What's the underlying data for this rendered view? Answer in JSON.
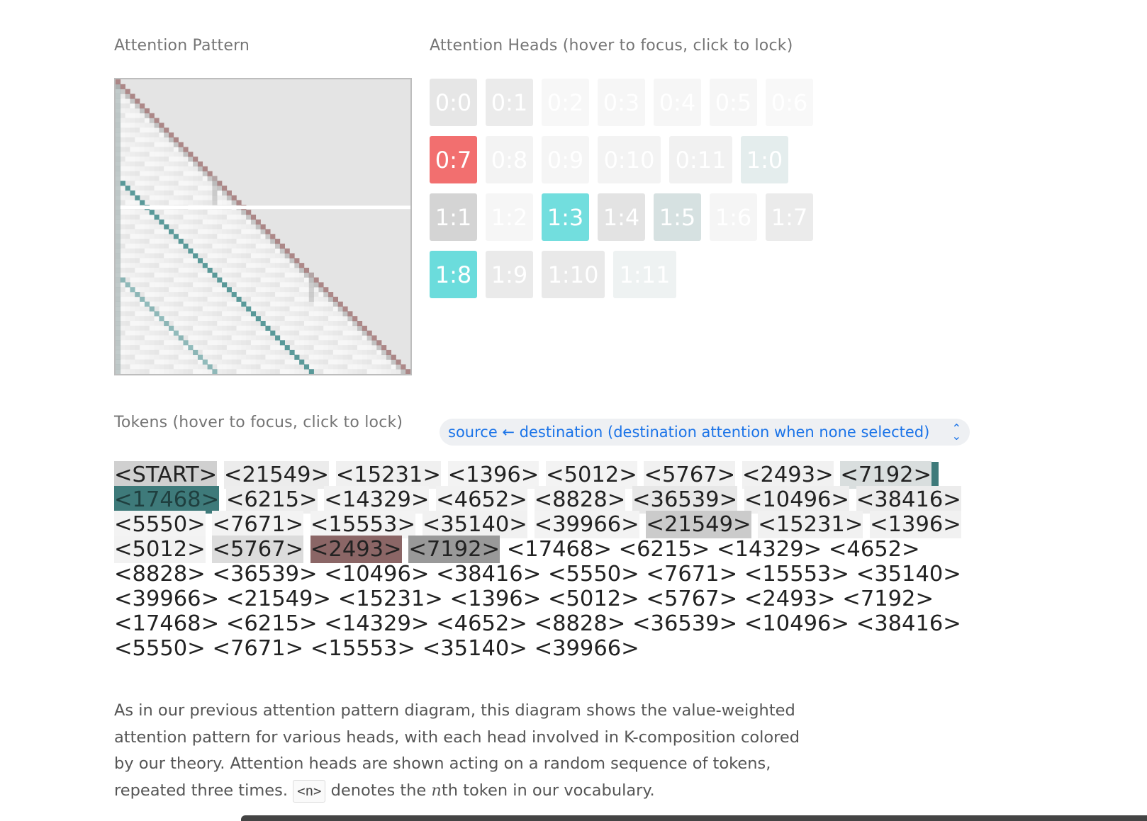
{
  "labels": {
    "pattern": "Attention Pattern",
    "heads": "Attention Heads (hover to focus, click to lock)",
    "tokens": "Tokens (hover to focus, click to lock)"
  },
  "heads": {
    "rows": [
      [
        {
          "label": "0:0",
          "color": "#e6e6e6"
        },
        {
          "label": "0:1",
          "color": "#ebebeb"
        },
        {
          "label": "0:2",
          "color": "#f7f7f7"
        },
        {
          "label": "0:3",
          "color": "#f6f6f6"
        },
        {
          "label": "0:4",
          "color": "#f6f6f6"
        },
        {
          "label": "0:5",
          "color": "#f6f6f6"
        },
        {
          "label": "0:6",
          "color": "#f8f8f8"
        }
      ],
      [
        {
          "label": "0:7",
          "color": "#f26f6f"
        },
        {
          "label": "0:8",
          "color": "#f3f3f3"
        },
        {
          "label": "0:9",
          "color": "#f5f5f5"
        },
        {
          "label": "0:10",
          "color": "#f3f3f3"
        },
        {
          "label": "0:11",
          "color": "#f1f1f1"
        },
        {
          "label": "1:0",
          "color": "#e4eded"
        }
      ],
      [
        {
          "label": "1:1",
          "color": "#d4d4d4"
        },
        {
          "label": "1:2",
          "color": "#f6f6f6"
        },
        {
          "label": "1:3",
          "color": "#72dede"
        },
        {
          "label": "1:4",
          "color": "#e3e3e3"
        },
        {
          "label": "1:5",
          "color": "#d6e1e1"
        },
        {
          "label": "1:6",
          "color": "#f5f5f5"
        },
        {
          "label": "1:7",
          "color": "#ebebeb"
        }
      ],
      [
        {
          "label": "1:8",
          "color": "#6bdcdc"
        },
        {
          "label": "1:9",
          "color": "#eaeaea"
        },
        {
          "label": "1:10",
          "color": "#e9e9e9"
        },
        {
          "label": "1:11",
          "color": "#eef2f2"
        }
      ]
    ]
  },
  "selector": {
    "value": "source ← destination (destination attention when none selected)"
  },
  "tokens": [
    {
      "text": "<START>",
      "bg": "#d0d0d0"
    },
    {
      "text": "<21549>",
      "bg": "#ececec"
    },
    {
      "text": "<15231>",
      "bg": "#f0f0f0"
    },
    {
      "text": "<1396>",
      "bg": "#f3f3f3"
    },
    {
      "text": "<5012>",
      "bg": "#f3f3f3"
    },
    {
      "text": "<5767>",
      "bg": "#f1f1f1"
    },
    {
      "text": "<2493>",
      "bg": "#f1f1f1"
    },
    {
      "text": "<7192>",
      "bg": "#d9dede"
    },
    {
      "text": "<17468>",
      "bg": "#3e7a7a",
      "cursor": true
    },
    {
      "text": "<6215>",
      "bg": "#ededed"
    },
    {
      "text": "<14329>",
      "bg": "#f2f2f2"
    },
    {
      "text": "<4652>",
      "bg": "#f2f2f2"
    },
    {
      "text": "<8828>",
      "bg": "#f2f2f2"
    },
    {
      "text": "<36539>",
      "bg": "#e7e7e7"
    },
    {
      "text": "<10496>",
      "bg": "#efefef"
    },
    {
      "text": "<38416>",
      "bg": "#ececec"
    },
    {
      "text": "<5550>",
      "bg": "#f3f3f3"
    },
    {
      "text": "<7671>",
      "bg": "#f3f3f3"
    },
    {
      "text": "<15553>",
      "bg": "#f3f3f3"
    },
    {
      "text": "<35140>",
      "bg": "#f1f1f1"
    },
    {
      "text": "<39966>",
      "bg": "#f3f3f3"
    },
    {
      "text": "<21549>",
      "bg": "#cbcbcb"
    },
    {
      "text": "<15231>",
      "bg": "#f1f1f1"
    },
    {
      "text": "<1396>",
      "bg": "#f1f1f1"
    },
    {
      "text": "<5012>",
      "bg": "#f2f2f2"
    },
    {
      "text": "<5767>",
      "bg": "#dcdcdc"
    },
    {
      "text": "<2493>",
      "bg": "#8b6666"
    },
    {
      "text": "<7192>",
      "bg": "#999999"
    },
    {
      "text": "<17468>",
      "bg": ""
    },
    {
      "text": "<6215>",
      "bg": ""
    },
    {
      "text": "<14329>",
      "bg": ""
    },
    {
      "text": "<4652>",
      "bg": ""
    },
    {
      "text": "<8828>",
      "bg": ""
    },
    {
      "text": "<36539>",
      "bg": ""
    },
    {
      "text": "<10496>",
      "bg": ""
    },
    {
      "text": "<38416>",
      "bg": ""
    },
    {
      "text": "<5550>",
      "bg": ""
    },
    {
      "text": "<7671>",
      "bg": ""
    },
    {
      "text": "<15553>",
      "bg": ""
    },
    {
      "text": "<35140>",
      "bg": ""
    },
    {
      "text": "<39966>",
      "bg": ""
    },
    {
      "text": "<21549>",
      "bg": ""
    },
    {
      "text": "<15231>",
      "bg": ""
    },
    {
      "text": "<1396>",
      "bg": ""
    },
    {
      "text": "<5012>",
      "bg": ""
    },
    {
      "text": "<5767>",
      "bg": ""
    },
    {
      "text": "<2493>",
      "bg": ""
    },
    {
      "text": "<7192>",
      "bg": ""
    },
    {
      "text": "<17468>",
      "bg": ""
    },
    {
      "text": "<6215>",
      "bg": ""
    },
    {
      "text": "<14329>",
      "bg": ""
    },
    {
      "text": "<4652>",
      "bg": ""
    },
    {
      "text": "<8828>",
      "bg": ""
    },
    {
      "text": "<36539>",
      "bg": ""
    },
    {
      "text": "<10496>",
      "bg": ""
    },
    {
      "text": "<38416>",
      "bg": ""
    },
    {
      "text": "<5550>",
      "bg": ""
    },
    {
      "text": "<7671>",
      "bg": ""
    },
    {
      "text": "<15553>",
      "bg": ""
    },
    {
      "text": "<35140>",
      "bg": ""
    },
    {
      "text": "<39966>",
      "bg": ""
    }
  ],
  "description": {
    "part1": "As in our previous attention pattern diagram, this diagram shows the value-weighted attention pattern for various heads, with each head involved in K-composition colored by our theory. Attention heads are shown acting on a random sequence of tokens, repeated three times.",
    "code": "<n>",
    "part2a": "denotes the",
    "math": "n",
    "part2b": "th token in our vocabulary."
  },
  "pattern_colors": {
    "diagonal": "#a07474",
    "induction": "#3e8a8a",
    "prev_token": "#9a9a9a"
  }
}
